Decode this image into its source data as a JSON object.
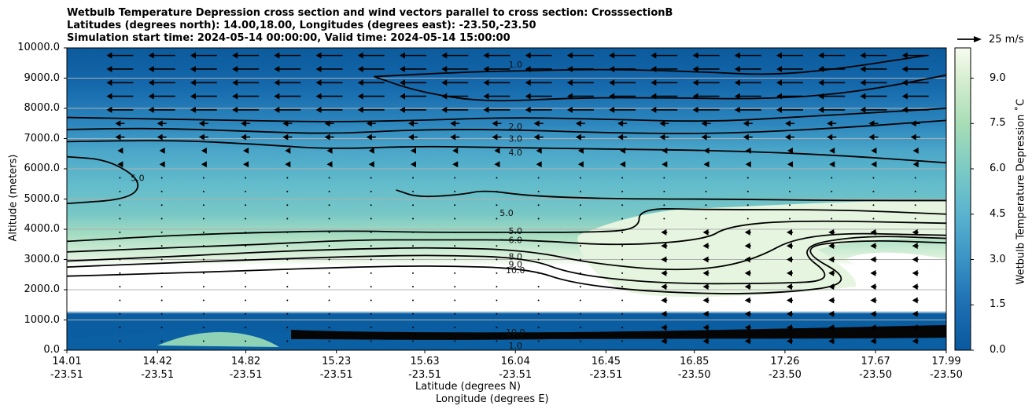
{
  "chart_data": {
    "type": "contourf",
    "title_lines": [
      "Wetbulb Temperature Depression cross section and wind vectors parallel to cross section: CrosssectionB",
      "Latitudes (degrees north): 14.00,18.00, Longitudes (degrees east): -23.50,-23.50",
      "Simulation start time: 2024-05-14 00:00:00, Valid time: 2024-05-14 15:00:00"
    ],
    "ylabel": "Altitude (meters)",
    "xlabel_lat": "Latitude (degrees N)",
    "xlabel_lon": "Longitude (degrees E)",
    "ylim": [
      0,
      10000
    ],
    "yticks": [
      "0.0",
      "1000.0",
      "2000.0",
      "3000.0",
      "4000.0",
      "5000.0",
      "6000.0",
      "7000.0",
      "8000.0",
      "9000.0",
      "10000.0"
    ],
    "ytick_values": [
      0,
      1000,
      2000,
      3000,
      4000,
      5000,
      6000,
      7000,
      8000,
      9000,
      10000
    ],
    "xlim": [
      14.01,
      17.99
    ],
    "xticks_lat": [
      "14.01",
      "14.42",
      "14.82",
      "15.23",
      "15.63",
      "16.04",
      "16.45",
      "16.85",
      "17.26",
      "17.67",
      "17.99"
    ],
    "xticks_lon": [
      "-23.51",
      "-23.51",
      "-23.51",
      "-23.51",
      "-23.51",
      "-23.51",
      "-23.51",
      "-23.50",
      "-23.50",
      "-23.50",
      "-23.50"
    ],
    "xtick_values": [
      14.01,
      14.42,
      14.82,
      15.23,
      15.63,
      16.04,
      16.45,
      16.85,
      17.26,
      17.67,
      17.99
    ],
    "colorbar": {
      "label": "Wetbulb Temperature Depression $^\\circ$C",
      "label_display": "Wetbulb Temperature Depression ˚C",
      "range": [
        0,
        10
      ],
      "ticks": [
        "0.0",
        "1.5",
        "3.0",
        "4.5",
        "6.0",
        "7.5",
        "9.0"
      ],
      "tick_values": [
        0,
        1.5,
        3.0,
        4.5,
        6.0,
        7.5,
        9.0
      ],
      "levels": 20,
      "colormap": "GnBu_r"
    },
    "contour_labels": [
      {
        "text": "1.0",
        "lat": 16.04,
        "alt": 9450
      },
      {
        "text": "2.0",
        "lat": 16.04,
        "alt": 7400
      },
      {
        "text": "3.0",
        "lat": 16.04,
        "alt": 7000
      },
      {
        "text": "4.0",
        "lat": 16.04,
        "alt": 6550
      },
      {
        "text": "5.0",
        "lat": 16.0,
        "alt": 4550
      },
      {
        "text": "5.0",
        "lat": 14.33,
        "alt": 5700
      },
      {
        "text": "5.0",
        "lat": 16.04,
        "alt": 3950
      },
      {
        "text": "6.0",
        "lat": 16.04,
        "alt": 3650
      },
      {
        "text": "8.0",
        "lat": 16.04,
        "alt": 3100
      },
      {
        "text": "9.0",
        "lat": 16.04,
        "alt": 2850
      },
      {
        "text": "10.0",
        "lat": 16.04,
        "alt": 2650
      },
      {
        "text": "10.0",
        "lat": 16.04,
        "alt": 600
      },
      {
        "text": "1.0",
        "lat": 16.04,
        "alt": 150
      }
    ],
    "contour_lines": [
      {
        "level": 1.0,
        "points": [
          [
            15.4,
            9050
          ],
          [
            15.8,
            9200
          ],
          [
            16.1,
            9250
          ],
          [
            16.5,
            9300
          ],
          [
            16.9,
            9200
          ],
          [
            17.2,
            9100
          ],
          [
            17.5,
            9300
          ],
          [
            17.9,
            9750
          ]
        ]
      },
      {
        "level": 1.0,
        "points": [
          [
            15.4,
            9050
          ],
          [
            15.6,
            8550
          ],
          [
            15.9,
            8200
          ],
          [
            16.3,
            8350
          ],
          [
            16.7,
            8350
          ],
          [
            17.2,
            8300
          ],
          [
            17.6,
            8550
          ],
          [
            17.99,
            9100
          ]
        ]
      },
      {
        "level": 2.0,
        "points": [
          [
            14.01,
            7700
          ],
          [
            14.4,
            7650
          ],
          [
            14.8,
            7600
          ],
          [
            15.2,
            7550
          ],
          [
            15.6,
            7600
          ],
          [
            16.0,
            7700
          ],
          [
            16.4,
            7650
          ],
          [
            16.9,
            7550
          ],
          [
            17.3,
            7700
          ],
          [
            17.99,
            8000
          ]
        ]
      },
      {
        "level": 3.0,
        "points": [
          [
            14.01,
            7300
          ],
          [
            14.4,
            7350
          ],
          [
            14.8,
            7250
          ],
          [
            15.2,
            7150
          ],
          [
            15.6,
            7300
          ],
          [
            16.0,
            7300
          ],
          [
            16.4,
            7200
          ],
          [
            16.9,
            7150
          ],
          [
            17.4,
            7300
          ],
          [
            17.99,
            7600
          ]
        ]
      },
      {
        "level": 4.0,
        "points": [
          [
            14.01,
            6900
          ],
          [
            14.5,
            6950
          ],
          [
            14.9,
            6800
          ],
          [
            15.2,
            6650
          ],
          [
            15.6,
            6750
          ],
          [
            16.0,
            6700
          ],
          [
            16.5,
            6650
          ],
          [
            17.0,
            6600
          ],
          [
            17.5,
            6450
          ],
          [
            17.99,
            6200
          ]
        ]
      },
      {
        "level": 5.0,
        "points": [
          [
            14.01,
            6400
          ],
          [
            14.2,
            6300
          ],
          [
            14.35,
            5600
          ],
          [
            14.3,
            5000
          ],
          [
            14.01,
            4850
          ]
        ]
      },
      {
        "level": 5.0,
        "points": [
          [
            15.5,
            5300
          ],
          [
            15.6,
            5050
          ],
          [
            15.8,
            5150
          ],
          [
            15.9,
            5300
          ],
          [
            16.1,
            5100
          ],
          [
            16.5,
            5000
          ],
          [
            17.0,
            5000
          ],
          [
            17.5,
            4950
          ],
          [
            17.99,
            4950
          ]
        ]
      },
      {
        "level": 5.0,
        "points": [
          [
            14.01,
            3600
          ],
          [
            14.5,
            3800
          ],
          [
            14.9,
            3900
          ],
          [
            15.3,
            3950
          ],
          [
            15.6,
            3900
          ],
          [
            16.0,
            3900
          ],
          [
            16.4,
            3900
          ],
          [
            16.6,
            4000
          ],
          [
            16.6,
            4700
          ],
          [
            16.9,
            4650
          ],
          [
            17.5,
            4650
          ],
          [
            17.99,
            4500
          ]
        ]
      },
      {
        "level": 6.0,
        "points": [
          [
            14.01,
            3250
          ],
          [
            14.5,
            3400
          ],
          [
            14.9,
            3500
          ],
          [
            15.3,
            3650
          ],
          [
            15.7,
            3650
          ],
          [
            16.1,
            3650
          ],
          [
            16.5,
            3450
          ],
          [
            16.9,
            3650
          ],
          [
            17.0,
            4100
          ],
          [
            17.3,
            4300
          ],
          [
            17.99,
            4200
          ]
        ]
      },
      {
        "level": 8.0,
        "points": [
          [
            14.01,
            2950
          ],
          [
            14.5,
            3100
          ],
          [
            14.9,
            3250
          ],
          [
            15.3,
            3350
          ],
          [
            15.7,
            3400
          ],
          [
            16.1,
            3300
          ],
          [
            16.4,
            2850
          ],
          [
            16.8,
            2600
          ],
          [
            17.1,
            2900
          ],
          [
            17.35,
            3900
          ],
          [
            17.99,
            3800
          ]
        ]
      },
      {
        "level": 9.0,
        "points": [
          [
            14.01,
            2750
          ],
          [
            14.5,
            2900
          ],
          [
            14.9,
            3000
          ],
          [
            15.3,
            3100
          ],
          [
            15.7,
            3150
          ],
          [
            16.1,
            3050
          ],
          [
            16.3,
            2500
          ],
          [
            16.7,
            2200
          ],
          [
            17.2,
            2200
          ],
          [
            17.5,
            2300
          ],
          [
            17.3,
            3400
          ],
          [
            17.6,
            3800
          ],
          [
            17.99,
            3700
          ]
        ]
      },
      {
        "level": 10.0,
        "points": [
          [
            14.01,
            2450
          ],
          [
            14.5,
            2550
          ],
          [
            14.9,
            2650
          ],
          [
            15.3,
            2750
          ],
          [
            15.7,
            2800
          ],
          [
            16.1,
            2700
          ],
          [
            16.3,
            2200
          ],
          [
            16.7,
            1900
          ],
          [
            17.2,
            1850
          ],
          [
            17.6,
            2200
          ],
          [
            17.3,
            3400
          ],
          [
            17.6,
            3650
          ],
          [
            17.99,
            3550
          ]
        ]
      }
    ],
    "wind_reference": {
      "label": "25 m/s",
      "speed": 25
    }
  }
}
